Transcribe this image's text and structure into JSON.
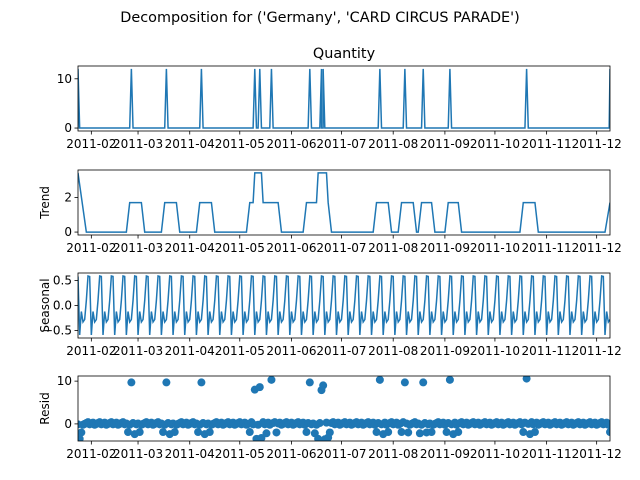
{
  "figure": {
    "suptitle": "Decomposition for ('Germany', 'CARD CIRCUS PARADE')",
    "line_color": "#1f77b4",
    "resid_zero_line_color": "#000000"
  },
  "chart_data": [
    {
      "type": "line",
      "title": "Quantity",
      "ylabel": "",
      "ylim": [
        -0.6,
        12.6
      ],
      "yticks": [
        0,
        10
      ],
      "xlim": [
        "2011-01-24",
        "2011-12-09"
      ],
      "xtick_labels": [
        "2011-02",
        "2011-03",
        "2011-04",
        "2011-05",
        "2011-06",
        "2011-07",
        "2011-08",
        "2011-09",
        "2011-10",
        "2011-11",
        "2011-12"
      ],
      "baseline": 0,
      "spike_value": 12,
      "spike_dates": [
        "2011-01-24",
        "2011-02-25",
        "2011-03-18",
        "2011-04-08",
        "2011-05-10",
        "2011-05-13",
        "2011-05-20",
        "2011-06-12",
        "2011-06-19",
        "2011-06-20",
        "2011-07-24",
        "2011-08-08",
        "2011-08-19",
        "2011-09-04",
        "2011-10-20",
        "2011-12-09"
      ]
    },
    {
      "type": "line",
      "title": "",
      "ylabel": "Trend",
      "ylim": [
        -0.17,
        3.6
      ],
      "yticks": [
        0,
        2
      ],
      "xlim": [
        "2011-01-24",
        "2011-12-09"
      ],
      "xtick_labels": [
        "2011-02",
        "2011-03",
        "2011-04",
        "2011-05",
        "2011-06",
        "2011-07",
        "2011-08",
        "2011-09",
        "2011-10",
        "2011-11",
        "2011-12"
      ],
      "points": [
        {
          "x": "2011-01-24",
          "y": 3.43
        },
        {
          "x": "2011-01-29",
          "y": 0
        },
        {
          "x": "2011-02-22",
          "y": 0
        },
        {
          "x": "2011-02-24",
          "y": 1.71
        },
        {
          "x": "2011-03-03",
          "y": 1.71
        },
        {
          "x": "2011-03-05",
          "y": 0
        },
        {
          "x": "2011-03-15",
          "y": 0
        },
        {
          "x": "2011-03-17",
          "y": 1.71
        },
        {
          "x": "2011-03-24",
          "y": 1.71
        },
        {
          "x": "2011-03-26",
          "y": 0
        },
        {
          "x": "2011-04-05",
          "y": 0
        },
        {
          "x": "2011-04-07",
          "y": 1.71
        },
        {
          "x": "2011-04-14",
          "y": 1.71
        },
        {
          "x": "2011-04-16",
          "y": 0
        },
        {
          "x": "2011-05-05",
          "y": 0
        },
        {
          "x": "2011-05-07",
          "y": 1.71
        },
        {
          "x": "2011-05-09",
          "y": 1.71
        },
        {
          "x": "2011-05-10",
          "y": 3.43
        },
        {
          "x": "2011-05-14",
          "y": 3.43
        },
        {
          "x": "2011-05-15",
          "y": 1.71
        },
        {
          "x": "2011-05-24",
          "y": 1.71
        },
        {
          "x": "2011-05-26",
          "y": 0
        },
        {
          "x": "2011-06-08",
          "y": 0
        },
        {
          "x": "2011-06-10",
          "y": 1.71
        },
        {
          "x": "2011-06-16",
          "y": 1.71
        },
        {
          "x": "2011-06-17",
          "y": 3.43
        },
        {
          "x": "2011-06-22",
          "y": 3.43
        },
        {
          "x": "2011-06-23",
          "y": 1.71
        },
        {
          "x": "2011-06-25",
          "y": 0
        },
        {
          "x": "2011-07-20",
          "y": 0
        },
        {
          "x": "2011-07-22",
          "y": 1.71
        },
        {
          "x": "2011-07-29",
          "y": 1.71
        },
        {
          "x": "2011-07-31",
          "y": 0
        },
        {
          "x": "2011-08-04",
          "y": 0
        },
        {
          "x": "2011-08-06",
          "y": 1.71
        },
        {
          "x": "2011-08-13",
          "y": 1.71
        },
        {
          "x": "2011-08-15",
          "y": 0
        },
        {
          "x": "2011-08-16",
          "y": 0
        },
        {
          "x": "2011-08-18",
          "y": 1.71
        },
        {
          "x": "2011-08-24",
          "y": 1.71
        },
        {
          "x": "2011-08-26",
          "y": 0
        },
        {
          "x": "2011-09-01",
          "y": 0
        },
        {
          "x": "2011-09-03",
          "y": 1.71
        },
        {
          "x": "2011-09-09",
          "y": 1.71
        },
        {
          "x": "2011-09-11",
          "y": 0
        },
        {
          "x": "2011-10-16",
          "y": 0
        },
        {
          "x": "2011-10-18",
          "y": 1.71
        },
        {
          "x": "2011-10-25",
          "y": 1.71
        },
        {
          "x": "2011-10-27",
          "y": 0
        },
        {
          "x": "2011-12-06",
          "y": 0
        },
        {
          "x": "2011-12-09",
          "y": 1.71
        }
      ]
    },
    {
      "type": "line",
      "title": "",
      "ylabel": "Seasonal",
      "ylim": [
        -0.65,
        0.65
      ],
      "yticks": [
        -0.5,
        0.0,
        0.5
      ],
      "ytick_labels": [
        "−0.5",
        "0.0",
        "0.5"
      ],
      "xlim": [
        "2011-01-24",
        "2011-12-09"
      ],
      "xtick_labels": [
        "2011-02",
        "2011-03",
        "2011-04",
        "2011-05",
        "2011-06",
        "2011-07",
        "2011-08",
        "2011-09",
        "2011-10",
        "2011-11",
        "2011-12"
      ],
      "period_days": 7,
      "weekly_pattern": [
        0.58,
        -0.59,
        -0.12,
        -0.33,
        -0.28,
        0.1,
        0.59
      ]
    },
    {
      "type": "scatter",
      "title": "",
      "ylabel": "Resid",
      "ylim": [
        -4,
        11.2
      ],
      "yticks": [
        0,
        10
      ],
      "xlim": [
        "2011-01-24",
        "2011-12-09"
      ],
      "xtick_labels": [
        "2011-02",
        "2011-03",
        "2011-04",
        "2011-05",
        "2011-06",
        "2011-07",
        "2011-08",
        "2011-09",
        "2011-10",
        "2011-11",
        "2011-12"
      ],
      "zero_line": 0,
      "high_points": [
        {
          "x": "2011-02-25",
          "y": 9.7
        },
        {
          "x": "2011-03-18",
          "y": 9.7
        },
        {
          "x": "2011-04-08",
          "y": 9.7
        },
        {
          "x": "2011-05-10",
          "y": 8.0
        },
        {
          "x": "2011-05-13",
          "y": 8.6
        },
        {
          "x": "2011-05-20",
          "y": 10.3
        },
        {
          "x": "2011-06-12",
          "y": 9.7
        },
        {
          "x": "2011-06-19",
          "y": 7.9
        },
        {
          "x": "2011-06-20",
          "y": 9.0
        },
        {
          "x": "2011-07-24",
          "y": 10.3
        },
        {
          "x": "2011-08-08",
          "y": 9.7
        },
        {
          "x": "2011-08-19",
          "y": 9.7
        },
        {
          "x": "2011-09-04",
          "y": 10.3
        },
        {
          "x": "2011-10-20",
          "y": 10.6
        }
      ],
      "low_points": [
        {
          "x": "2011-01-25",
          "y": -3.5
        },
        {
          "x": "2011-01-26",
          "y": -2.0
        },
        {
          "x": "2011-02-23",
          "y": -1.9
        },
        {
          "x": "2011-02-27",
          "y": -2.4
        },
        {
          "x": "2011-03-02",
          "y": -1.9
        },
        {
          "x": "2011-03-16",
          "y": -1.9
        },
        {
          "x": "2011-03-20",
          "y": -2.4
        },
        {
          "x": "2011-03-23",
          "y": -1.9
        },
        {
          "x": "2011-04-06",
          "y": -1.9
        },
        {
          "x": "2011-04-10",
          "y": -2.4
        },
        {
          "x": "2011-04-13",
          "y": -1.9
        },
        {
          "x": "2011-05-07",
          "y": -1.9
        },
        {
          "x": "2011-05-11",
          "y": -3.5
        },
        {
          "x": "2011-05-14",
          "y": -3.3
        },
        {
          "x": "2011-05-17",
          "y": -2.2
        },
        {
          "x": "2011-05-23",
          "y": -2.0
        },
        {
          "x": "2011-06-10",
          "y": -1.9
        },
        {
          "x": "2011-06-15",
          "y": -2.2
        },
        {
          "x": "2011-06-17",
          "y": -3.5
        },
        {
          "x": "2011-06-21",
          "y": -3.6
        },
        {
          "x": "2011-06-23",
          "y": -3.2
        },
        {
          "x": "2011-06-24",
          "y": -2.0
        },
        {
          "x": "2011-07-22",
          "y": -1.9
        },
        {
          "x": "2011-07-26",
          "y": -2.4
        },
        {
          "x": "2011-07-29",
          "y": -1.9
        },
        {
          "x": "2011-08-06",
          "y": -1.9
        },
        {
          "x": "2011-08-10",
          "y": -2.0
        },
        {
          "x": "2011-08-17",
          "y": -2.2
        },
        {
          "x": "2011-08-21",
          "y": -2.0
        },
        {
          "x": "2011-08-24",
          "y": -1.9
        },
        {
          "x": "2011-09-02",
          "y": -1.9
        },
        {
          "x": "2011-09-06",
          "y": -2.4
        },
        {
          "x": "2011-09-09",
          "y": -1.9
        },
        {
          "x": "2011-10-18",
          "y": -1.9
        },
        {
          "x": "2011-10-22",
          "y": -2.4
        },
        {
          "x": "2011-10-25",
          "y": -1.9
        },
        {
          "x": "2011-12-09",
          "y": -1.9
        }
      ]
    }
  ]
}
